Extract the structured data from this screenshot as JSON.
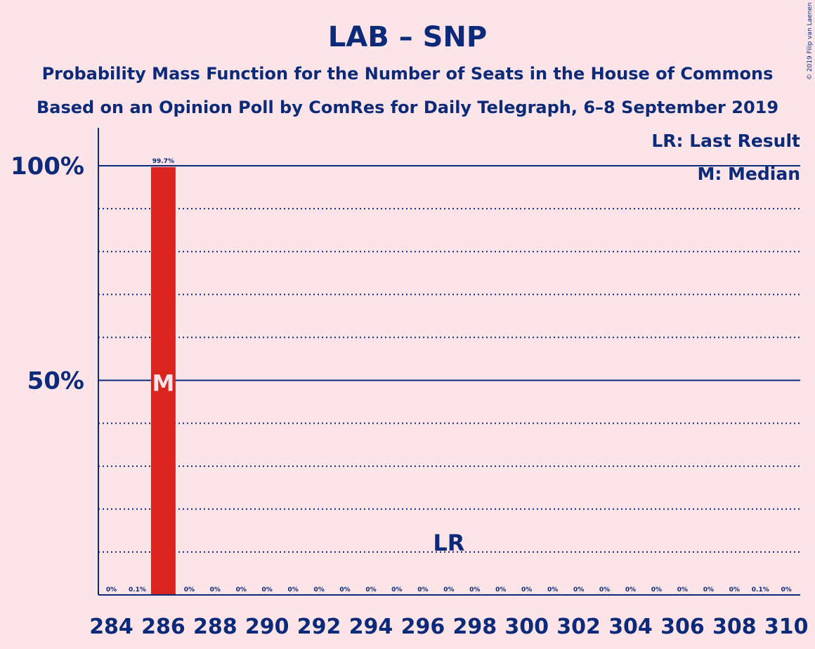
{
  "chart_data": {
    "type": "bar",
    "title": "LAB – SNP",
    "subtitle_lines": [
      "Probability Mass Function for the Number of Seats in the House of Commons",
      "Based on an Opinion Poll by ComRes for Daily Telegraph, 6–8 September 2019"
    ],
    "x": [
      284,
      285,
      286,
      287,
      288,
      289,
      290,
      291,
      292,
      293,
      294,
      295,
      296,
      297,
      298,
      299,
      300,
      301,
      302,
      303,
      304,
      305,
      306,
      307,
      308,
      309,
      310
    ],
    "values": [
      0,
      0.1,
      99.7,
      0,
      0,
      0,
      0,
      0,
      0,
      0,
      0,
      0,
      0,
      0,
      0,
      0,
      0,
      0,
      0,
      0,
      0,
      0,
      0,
      0,
      0,
      0.1,
      0
    ],
    "bar_labels": [
      "0%",
      "0.1%",
      "99.7%",
      "0%",
      "0%",
      "0%",
      "0%",
      "0%",
      "0%",
      "0%",
      "0%",
      "0%",
      "0%",
      "0%",
      "0%",
      "0%",
      "0%",
      "0%",
      "0%",
      "0%",
      "0%",
      "0%",
      "0%",
      "0%",
      "0%",
      "0.1%",
      "0%"
    ],
    "x_tick_labels": [
      "284",
      "286",
      "288",
      "290",
      "292",
      "294",
      "296",
      "298",
      "300",
      "302",
      "304",
      "306",
      "308",
      "310"
    ],
    "y_tick_labels": [
      {
        "value": 50,
        "label": "50%"
      },
      {
        "value": 100,
        "label": "100%"
      }
    ],
    "ylim": [
      0,
      110
    ],
    "grid": true,
    "median_seat": 286,
    "median_marker": "M",
    "last_result_seat": 297,
    "last_result_marker": "LR",
    "legend": [
      "LR: Last Result",
      "M: Median"
    ],
    "legend_position": "top-right",
    "copyright": "© 2019 Filip van Laenen",
    "colors": {
      "background": "#fde4e8",
      "bar": "#dc241f",
      "text": "#0b2a7a",
      "axis": "#0b2a7a"
    }
  }
}
